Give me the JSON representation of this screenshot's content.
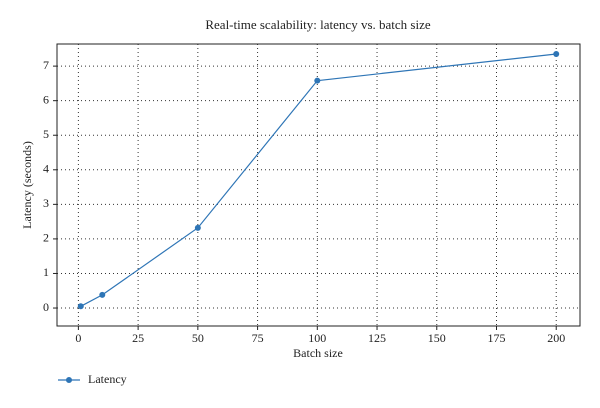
{
  "chart_data": {
    "type": "line",
    "title": "Real-time scalability: latency vs. batch size",
    "x_label": "Batch size",
    "y_label": "Latency (seconds)",
    "x": [
      1,
      10,
      50,
      100,
      200
    ],
    "series": [
      {
        "name": "Latency",
        "color": "#2e75b6",
        "values": [
          0.05,
          0.38,
          2.32,
          6.58,
          7.35
        ]
      }
    ],
    "xlim": [
      -8.95,
      209.95
    ],
    "xticks": [
      0,
      25,
      50,
      75,
      100,
      125,
      150,
      175,
      200
    ],
    "ylim": [
      -0.52,
      7.64
    ],
    "yticks": [
      0,
      1,
      2,
      3,
      4,
      5,
      6,
      7
    ],
    "grid": true,
    "legend": "below-left"
  }
}
